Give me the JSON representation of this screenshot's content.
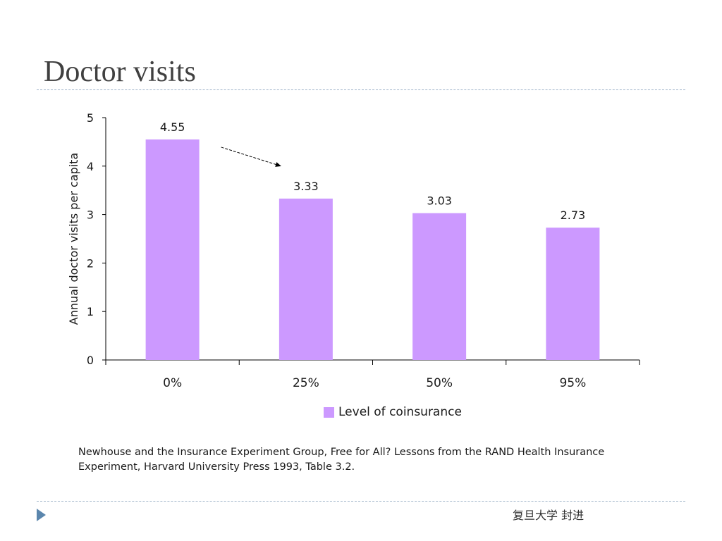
{
  "slide": {
    "title": "Doctor visits",
    "source": "Newhouse and the Insurance Experiment Group, Free for All? Lessons from the RAND Health Insurance Experiment, Harvard University Press 1993, Table 3.2.",
    "footer": "复旦大学  封进"
  },
  "chart_data": {
    "type": "bar",
    "categories": [
      "0%",
      "25%",
      "50%",
      "95%"
    ],
    "values": [
      4.55,
      3.33,
      3.03,
      2.73
    ],
    "data_labels": [
      "4.55",
      "3.33",
      "3.03",
      "2.73"
    ],
    "series": [
      {
        "name": "Level of coinsurance",
        "values": [
          4.55,
          3.33,
          3.03,
          2.73
        ]
      }
    ],
    "title": "",
    "xlabel": "",
    "ylabel": "Annual doctor visits per capita",
    "ylim": [
      0,
      5
    ],
    "yticks": [
      "0",
      "1",
      "2",
      "3",
      "4",
      "5"
    ],
    "grid": false,
    "legend_position": "bottom",
    "bar_color": "#cc99ff",
    "annotation": "dashed arrow from first bar toward second bar"
  }
}
